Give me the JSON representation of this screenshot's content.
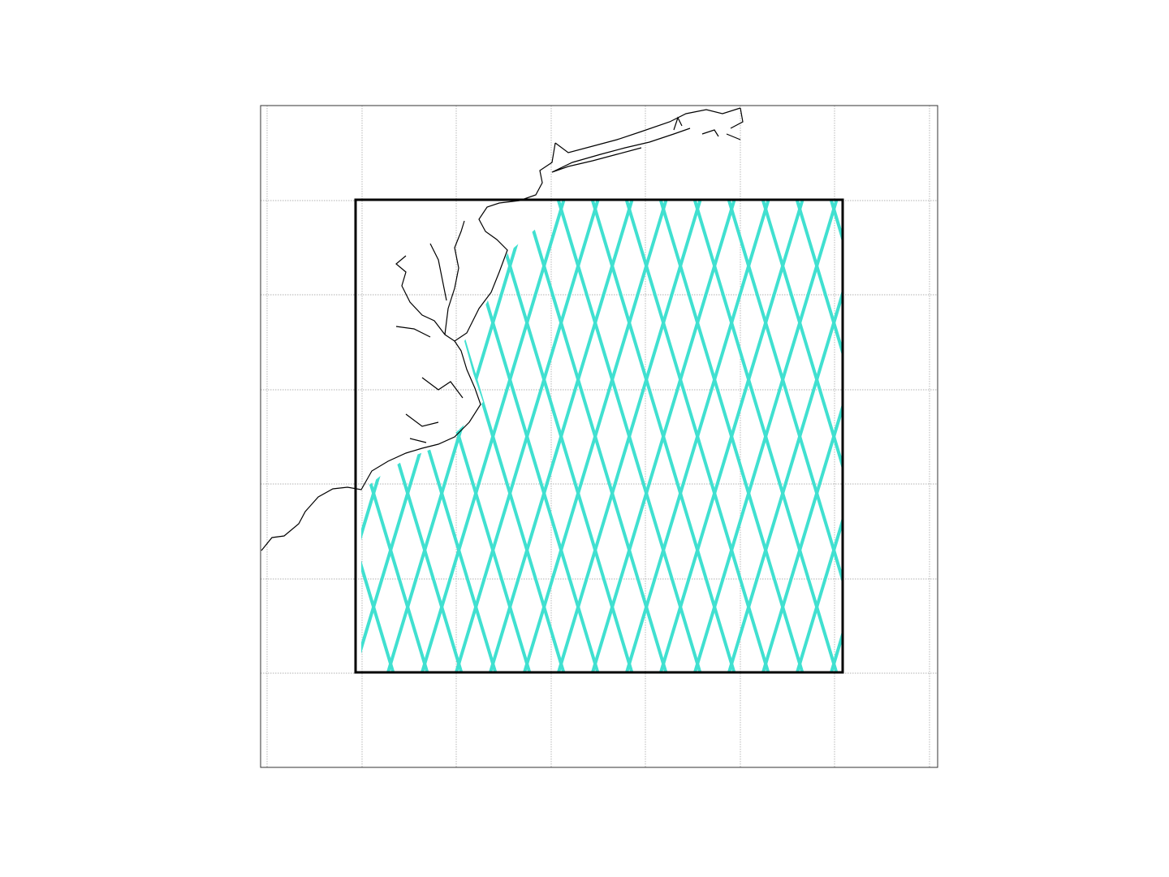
{
  "map": {
    "track_color": "#40e0d0",
    "grid": true
  }
}
